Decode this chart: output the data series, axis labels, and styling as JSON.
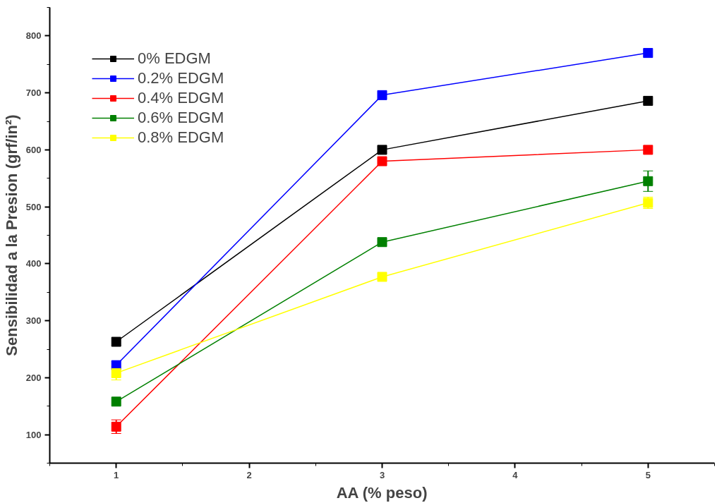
{
  "chart_data": {
    "type": "line",
    "xlabel": "AA (% peso)",
    "ylabel": "Sensibilidad a la Presion (grf/in²)",
    "x": [
      1,
      3,
      5
    ],
    "xlim": [
      0.5,
      5.5
    ],
    "xticks": [
      1,
      2,
      3,
      4,
      5
    ],
    "ylim": [
      50,
      850
    ],
    "yticks": [
      100,
      200,
      300,
      400,
      500,
      600,
      700,
      800
    ],
    "grid": false,
    "legend": "top left",
    "marker": "square",
    "line_style": "solid",
    "series": [
      {
        "name": "0% EDGM",
        "color": "#000000",
        "values": [
          263,
          600,
          686
        ]
      },
      {
        "name": "0.2% EDGM",
        "color": "#0000ff",
        "values": [
          222,
          696,
          770
        ]
      },
      {
        "name": "0.4% EDGM",
        "color": "#ff0000",
        "values": [
          114,
          580,
          600
        ],
        "errors": [
          12,
          null,
          null
        ]
      },
      {
        "name": "0.6% EDGM",
        "color": "#008000",
        "values": [
          158,
          438,
          545
        ],
        "errors": [
          null,
          null,
          18
        ]
      },
      {
        "name": "0.8% EDGM",
        "color": "#ffff00",
        "values": [
          208,
          377,
          507
        ],
        "errors": [
          12,
          null,
          10
        ]
      }
    ]
  }
}
